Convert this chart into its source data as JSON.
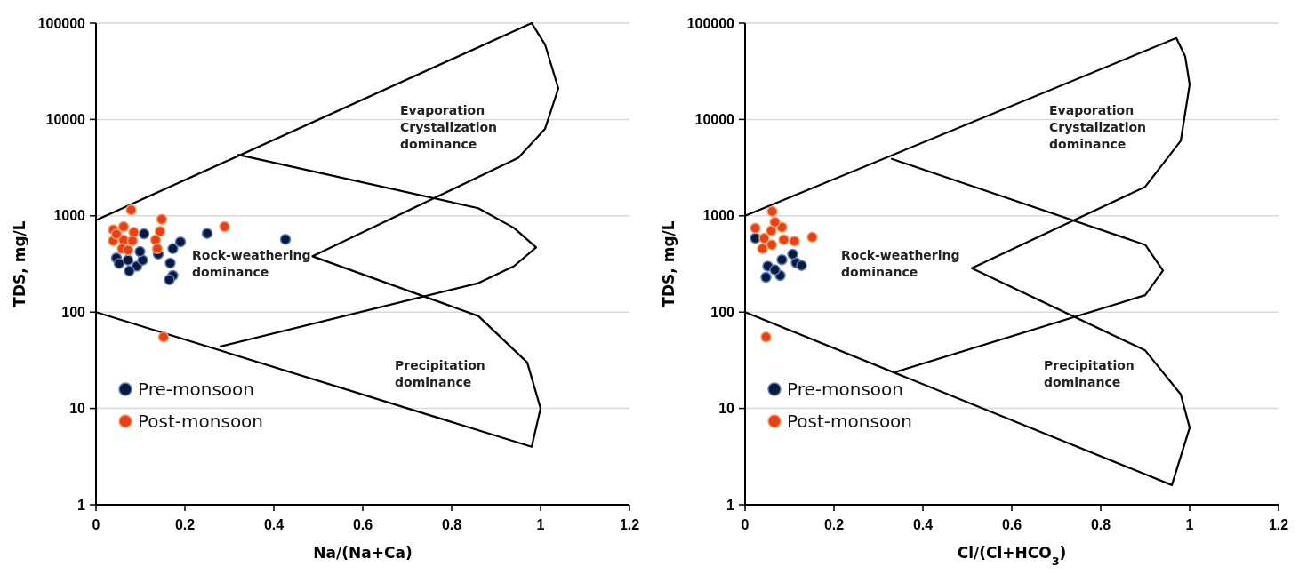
{
  "chart_data": [
    {
      "type": "scatter",
      "xlabel": "Na/(Na+Ca)",
      "ylabel": "TDS, mg/L",
      "xlim": [
        0,
        1.2
      ],
      "xticks": [
        0,
        0.2,
        0.4,
        0.6,
        0.8,
        1,
        1.2
      ],
      "ylim": [
        1,
        100000
      ],
      "yticks": [
        1,
        10,
        100,
        1000,
        10000,
        100000
      ],
      "log": "y",
      "grid": "y",
      "legend": "bottom left",
      "marker": "circle",
      "annotations": [
        "Evaporation\nCrystalization\ndominance",
        "Rock-weathering\ndominance",
        "Precipitation\ndominance"
      ],
      "series": [
        {
          "type": "line",
          "marker": "none",
          "color": "#000000",
          "x": [
            0,
            0.98,
            1.01,
            1.04,
            1.01,
            0.95,
            0.487,
            0.86,
            0.97,
            1.0,
            0.98,
            0
          ],
          "values": [
            900,
            100000,
            60000,
            21000,
            8000,
            4000,
            380,
            91,
            30,
            10,
            4,
            100
          ]
        },
        {
          "type": "line",
          "marker": "none",
          "color": "#000000",
          "x": [
            0.32,
            0.86,
            0.94,
            0.99,
            0.94,
            0.86,
            0.28
          ],
          "values": [
            4300,
            1200,
            750,
            470,
            300,
            200,
            44
          ]
        },
        {
          "name": "Pre-monsoon",
          "color": "#0b1a3a",
          "x": [
            0.25,
            0.426,
            0.19,
            0.173,
            0.167,
            0.173,
            0.165,
            0.046,
            0.072,
            0.092,
            0.075,
            0.105,
            0.108,
            0.052,
            0.099,
            0.14
          ],
          "values": [
            656,
            569,
            536,
            455,
            323,
            240,
            217,
            365,
            347,
            300,
            268,
            347,
            650,
            320,
            425,
            400
          ]
        },
        {
          "name": "Post-monsoon",
          "color": "#e8401c",
          "x": [
            0.079,
            0.148,
            0.289,
            0.152,
            0.039,
            0.062,
            0.085,
            0.039,
            0.062,
            0.082,
            0.059,
            0.072,
            0.134,
            0.144,
            0.138,
            0.046
          ],
          "values": [
            1150,
            920,
            770,
            55,
            718,
            770,
            675,
            550,
            560,
            550,
            455,
            440,
            560,
            690,
            455,
            645
          ]
        }
      ]
    },
    {
      "type": "scatter",
      "xlabel": "Cl/(Cl+HCO$_{3}$)",
      "ylabel": "TDS, mg/L",
      "xlim": [
        0,
        1.2
      ],
      "xticks": [
        0,
        0.2,
        0.4,
        0.6,
        0.8,
        1,
        1.2
      ],
      "ylim": [
        1,
        100000
      ],
      "yticks": [
        1,
        10,
        100,
        1000,
        10000,
        100000
      ],
      "log": "y",
      "grid": "y",
      "legend": "bottom left",
      "marker": "circle",
      "annotations": [
        "Evaporation\nCrystalization\ndominance",
        "Rock-weathering\ndominance",
        "Precipitation\ndominance"
      ],
      "series": [
        {
          "type": "line",
          "marker": "none",
          "color": "#000000",
          "x": [
            0,
            0.97,
            0.99,
            1.0,
            0.98,
            0.9,
            0.51,
            0.9,
            0.98,
            1.0,
            0.96,
            0
          ],
          "values": [
            1000,
            70000,
            45000,
            23000,
            6000,
            2000,
            286,
            40,
            14,
            6.3,
            1.6,
            100
          ]
        },
        {
          "type": "line",
          "marker": "none",
          "color": "#000000",
          "x": [
            0.33,
            0.9,
            0.94,
            0.9,
            0.34
          ],
          "values": [
            3900,
            500,
            270,
            150,
            24
          ]
        },
        {
          "name": "Pre-monsoon",
          "color": "#0b1a3a",
          "x": [
            0.051,
            0.047,
            0.079,
            0.115,
            0.127,
            0.083,
            0.023,
            0.067,
            0.107
          ],
          "values": [
            300,
            230,
            240,
            325,
            305,
            350,
            585,
            275,
            400
          ]
        },
        {
          "name": "Post-monsoon",
          "color": "#e8401c",
          "x": [
            0.061,
            0.023,
            0.151,
            0.047,
            0.043,
            0.059,
            0.087,
            0.111,
            0.039,
            0.06,
            0.083,
            0.067
          ],
          "values": [
            1110,
            745,
            600,
            55,
            585,
            700,
            565,
            545,
            455,
            500,
            760,
            860
          ]
        }
      ]
    }
  ]
}
